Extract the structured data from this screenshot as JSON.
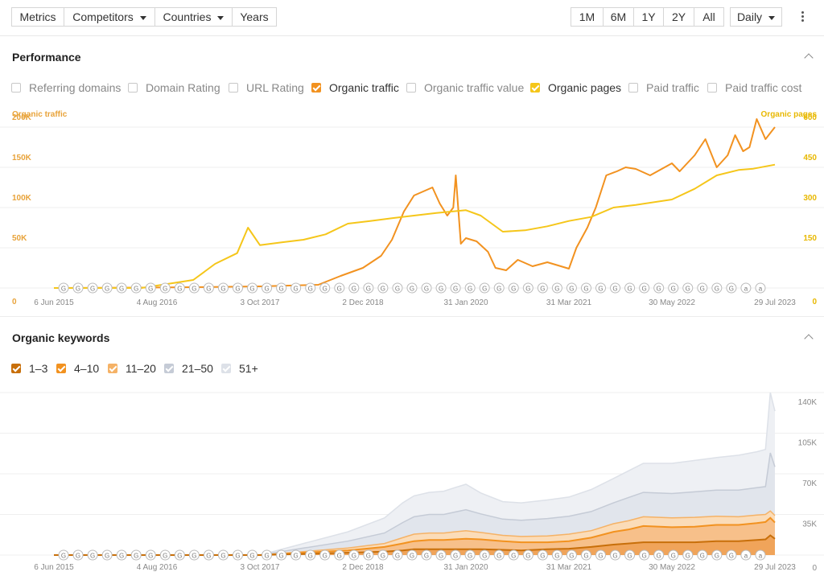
{
  "toolbar": {
    "left_tabs": [
      {
        "label": "Metrics",
        "active": true,
        "dropdown": false
      },
      {
        "label": "Competitors",
        "active": false,
        "dropdown": true
      },
      {
        "label": "Countries",
        "active": false,
        "dropdown": true
      },
      {
        "label": "Years",
        "active": false,
        "dropdown": false
      }
    ],
    "ranges": [
      {
        "label": "1M",
        "active": false
      },
      {
        "label": "6M",
        "active": false
      },
      {
        "label": "1Y",
        "active": false
      },
      {
        "label": "2Y",
        "active": false
      },
      {
        "label": "All",
        "active": true
      }
    ],
    "interval": "Daily",
    "more_icon": "kebab-icon"
  },
  "performance": {
    "title": "Performance",
    "collapse_icon": "chevron-up-icon",
    "metrics": [
      {
        "label": "Referring domains",
        "checked": false,
        "color": ""
      },
      {
        "label": "Domain Rating",
        "checked": false,
        "color": ""
      },
      {
        "label": "URL Rating",
        "checked": false,
        "color": ""
      },
      {
        "label": "Organic traffic",
        "checked": true,
        "color": "#f29220"
      },
      {
        "label": "Organic traffic value",
        "checked": false,
        "color": ""
      },
      {
        "label": "Organic pages",
        "checked": true,
        "color": "#f5c61a"
      },
      {
        "label": "Paid traffic",
        "checked": false,
        "color": ""
      },
      {
        "label": "Paid traffic cost",
        "checked": false,
        "color": ""
      }
    ]
  },
  "keywords": {
    "title": "Organic keywords",
    "collapse_icon": "chevron-up-icon",
    "buckets": [
      {
        "label": "1–3",
        "checked": true,
        "color": "#c86f0a"
      },
      {
        "label": "4–10",
        "checked": true,
        "color": "#f29220"
      },
      {
        "label": "11–20",
        "checked": true,
        "color": "#f5b266"
      },
      {
        "label": "21–50",
        "checked": true,
        "color": "#c5cbd6"
      },
      {
        "label": "51+",
        "checked": true,
        "color": "#dde1e8"
      }
    ]
  },
  "chart_data": [
    {
      "type": "line",
      "title": "",
      "ylabel_left": "Organic traffic",
      "ylabel_right": "Organic pages",
      "x_ticks": [
        "6 Jun 2015",
        "4 Aug 2016",
        "3 Oct 2017",
        "2 Dec 2018",
        "31 Jan 2020",
        "31 Mar 2021",
        "30 May 2022",
        "29 Jul 2023"
      ],
      "y_left_ticks": [
        "0",
        "50K",
        "100K",
        "150K",
        "200K"
      ],
      "y_right_ticks": [
        "0",
        "150",
        "300",
        "450",
        "600"
      ],
      "ylim_left": [
        0,
        200000
      ],
      "ylim_right": [
        0,
        600
      ],
      "grid": true,
      "update_marker_labels": [
        "G",
        "G",
        "G",
        "G",
        "G",
        "G",
        "G",
        "G",
        "G",
        "G",
        "G",
        "G",
        "G",
        "G",
        "G",
        "G",
        "G",
        "G",
        "G",
        "G",
        "G",
        "G",
        "G",
        "G",
        "G",
        "G",
        "G",
        "G",
        "G",
        "G",
        "G",
        "G",
        "G",
        "G",
        "G",
        "G",
        "G",
        "G",
        "G",
        "G",
        "G",
        "G",
        "G",
        "G",
        "G",
        "G",
        "G",
        "a",
        "a"
      ],
      "series": [
        {
          "name": "Organic traffic",
          "axis": "left",
          "color": "#f29220",
          "x": [
            "2015-06-06",
            "2016-06-01",
            "2017-01-01",
            "2017-10-03",
            "2018-02-01",
            "2018-06-01",
            "2018-09-01",
            "2018-12-02",
            "2019-02-15",
            "2019-04-01",
            "2019-05-20",
            "2019-07-01",
            "2019-09-15",
            "2019-10-15",
            "2019-11-15",
            "2019-12-10",
            "2019-12-20",
            "2020-01-10",
            "2020-01-31",
            "2020-03-15",
            "2020-05-01",
            "2020-06-01",
            "2020-07-15",
            "2020-09-01",
            "2020-11-01",
            "2021-01-01",
            "2021-02-15",
            "2021-03-31",
            "2021-05-01",
            "2021-06-15",
            "2021-07-20",
            "2021-09-01",
            "2021-10-15",
            "2021-11-20",
            "2022-01-01",
            "2022-03-01",
            "2022-05-30",
            "2022-07-01",
            "2022-09-01",
            "2022-10-15",
            "2022-12-01",
            "2023-01-15",
            "2023-02-15",
            "2023-03-20",
            "2023-04-15",
            "2023-05-15",
            "2023-06-20",
            "2023-07-29"
          ],
          "values": [
            0,
            500,
            1000,
            2000,
            3000,
            4000,
            15000,
            25000,
            40000,
            60000,
            95000,
            115000,
            125000,
            105000,
            90000,
            100000,
            140000,
            55000,
            62000,
            58000,
            45000,
            25000,
            22000,
            35000,
            27000,
            32000,
            28000,
            24000,
            50000,
            75000,
            100000,
            140000,
            145000,
            150000,
            148000,
            140000,
            155000,
            145000,
            165000,
            185000,
            150000,
            165000,
            190000,
            170000,
            175000,
            210000,
            185000,
            200000
          ]
        },
        {
          "name": "Organic pages",
          "axis": "right",
          "color": "#f5c61a",
          "x": [
            "2015-06-06",
            "2016-06-01",
            "2017-01-01",
            "2017-04-01",
            "2017-07-01",
            "2017-08-15",
            "2017-10-03",
            "2018-01-01",
            "2018-04-01",
            "2018-07-01",
            "2018-10-01",
            "2019-01-01",
            "2019-04-01",
            "2019-07-01",
            "2019-10-01",
            "2020-01-31",
            "2020-04-01",
            "2020-07-01",
            "2020-10-01",
            "2021-01-01",
            "2021-03-31",
            "2021-07-01",
            "2021-10-01",
            "2022-01-01",
            "2022-05-30",
            "2022-09-01",
            "2022-12-01",
            "2023-03-01",
            "2023-05-01",
            "2023-07-29"
          ],
          "values": [
            0,
            0,
            30,
            90,
            130,
            225,
            160,
            170,
            180,
            200,
            240,
            250,
            260,
            270,
            280,
            290,
            270,
            210,
            215,
            230,
            250,
            265,
            300,
            310,
            330,
            370,
            420,
            440,
            445,
            460
          ]
        }
      ]
    },
    {
      "type": "area",
      "title": "",
      "x_ticks": [
        "6 Jun 2015",
        "4 Aug 2016",
        "3 Oct 2017",
        "2 Dec 2018",
        "31 Jan 2020",
        "31 Mar 2021",
        "30 May 2022",
        "29 Jul 2023"
      ],
      "y_ticks": [
        "0",
        "35K",
        "70K",
        "105K",
        "140K"
      ],
      "ylim": [
        0,
        140000
      ],
      "grid": true,
      "stacked": true,
      "x": [
        "2015-06-06",
        "2016-06-01",
        "2017-06-01",
        "2017-10-03",
        "2018-04-01",
        "2018-10-01",
        "2019-03-01",
        "2019-05-15",
        "2019-07-01",
        "2019-09-01",
        "2019-11-01",
        "2019-12-15",
        "2020-01-31",
        "2020-04-01",
        "2020-07-01",
        "2020-09-15",
        "2021-01-01",
        "2021-03-31",
        "2021-07-01",
        "2021-10-01",
        "2021-12-01",
        "2022-02-01",
        "2022-05-30",
        "2022-09-01",
        "2022-12-01",
        "2023-03-01",
        "2023-05-15",
        "2023-06-20",
        "2023-07-10",
        "2023-07-29"
      ],
      "series": [
        {
          "name": "1–3",
          "values": [
            0,
            0,
            0,
            0,
            1000,
            2000,
            3000,
            4000,
            5000,
            5000,
            5000,
            5000,
            5000,
            5000,
            4500,
            4000,
            5000,
            5500,
            7000,
            9000,
            10000,
            11000,
            11000,
            11000,
            12000,
            12000,
            13000,
            13500,
            17000,
            14000
          ]
        },
        {
          "name": "4–10",
          "values": [
            0,
            0,
            0,
            0,
            1000,
            2000,
            4000,
            6000,
            7000,
            8000,
            8000,
            8500,
            9000,
            8500,
            7500,
            7000,
            6000,
            6500,
            8000,
            11000,
            12000,
            14000,
            13000,
            13500,
            14000,
            14000,
            14500,
            15000,
            15000,
            14000
          ]
        },
        {
          "name": "11–20",
          "values": [
            0,
            0,
            0,
            0,
            1000,
            2000,
            3000,
            5000,
            6000,
            6000,
            6000,
            6500,
            7000,
            6000,
            5000,
            5000,
            5500,
            6000,
            6000,
            7000,
            7500,
            8000,
            8000,
            8000,
            7500,
            7000,
            7000,
            6500,
            6000,
            6000
          ]
        },
        {
          "name": "21–50",
          "values": [
            0,
            0,
            0,
            0,
            3000,
            6000,
            9000,
            13000,
            15000,
            16000,
            16000,
            17000,
            18000,
            16000,
            14000,
            14000,
            15000,
            15500,
            16500,
            18000,
            20000,
            21000,
            21000,
            22000,
            22500,
            23000,
            23500,
            24000,
            50000,
            42000
          ]
        },
        {
          "name": "51+",
          "values": [
            0,
            0,
            0,
            0,
            4000,
            8000,
            13000,
            17000,
            18000,
            19000,
            20000,
            21000,
            22000,
            18000,
            15000,
            15000,
            16000,
            16500,
            19000,
            21000,
            23000,
            25000,
            26000,
            27000,
            28000,
            30000,
            31000,
            32000,
            52000,
            48000
          ]
        }
      ]
    }
  ]
}
